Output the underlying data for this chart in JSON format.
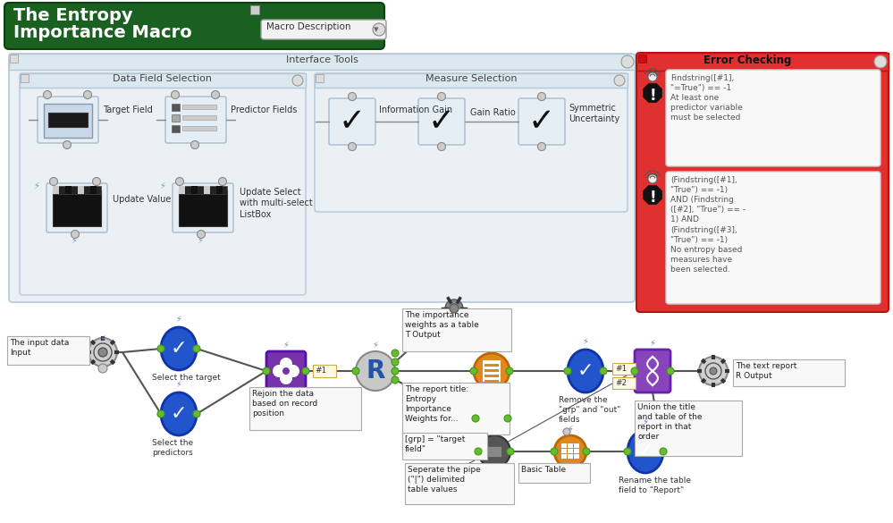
{
  "title_line1": "The Entropy",
  "title_line2": "Importance Macro",
  "title_bg": "#1a5c1a",
  "macro_desc": "Macro Description",
  "interface_tools": "Interface Tools",
  "data_field_sel": "Data Field Selection",
  "measure_sel": "Measure Selection",
  "error_checking": "Error Checking",
  "error_bg": "#e03030",
  "err1_text": "Findstring([#1],\n\"=True\") == -1\nAt least one\npredictor variable\nmust be selected",
  "err2_text": "(Findstring([#1],\n\"True\") == -1)\nAND (Findstring\n([#2], \"True\") == -\n1) AND\n(Findstring([#3],\n\"True\") == -1)\nNo entropy based\nmeasures have\nbeen selected.",
  "bg": "#ffffff",
  "panel_bg": "#e8eef2",
  "workflow_bg": "#ffffff"
}
